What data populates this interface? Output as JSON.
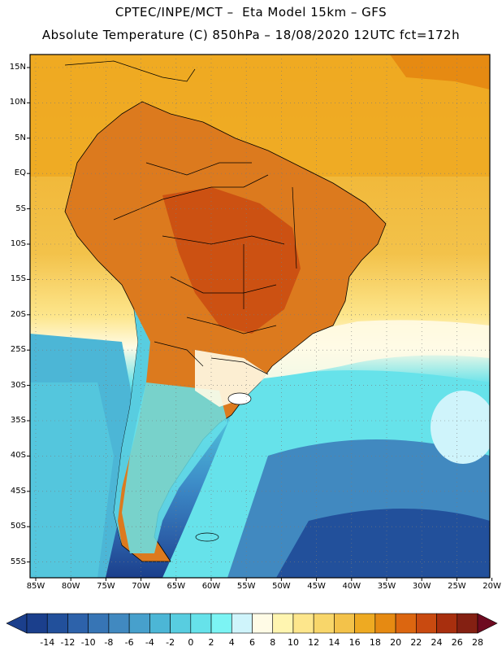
{
  "title_line1": "CPTEC/INPE/MCT –  Eta Model 15km – GFS",
  "title_line2": "Absolute Temperature (C) 850hPa – 18/08/2020 12UTC fct=172h",
  "lat_labels": [
    "15N",
    "10N",
    "5N",
    "EQ",
    "5S",
    "10S",
    "15S",
    "20S",
    "25S",
    "30S",
    "35S",
    "40S",
    "45S",
    "50S",
    "55S"
  ],
  "lon_labels": [
    "85W",
    "80W",
    "75W",
    "70W",
    "65W",
    "60W",
    "55W",
    "50W",
    "45W",
    "40W",
    "35W",
    "30W",
    "25W",
    "20W"
  ],
  "colorbar": {
    "labels": [
      "-14",
      "-12",
      "-10",
      "-8",
      "-6",
      "-4",
      "-2",
      "0",
      "2",
      "4",
      "6",
      "8",
      "10",
      "12",
      "14",
      "16",
      "18",
      "20",
      "22",
      "24",
      "26",
      "28"
    ],
    "colors": [
      "#1b3f8c",
      "#22509b",
      "#2d62aa",
      "#3775b5",
      "#4189c0",
      "#47a0cc",
      "#4cb6d6",
      "#58cde0",
      "#66e2ea",
      "#7cf4f4",
      "#cff4fb",
      "#fffbe6",
      "#fff5b0",
      "#fde68c",
      "#f8d66a",
      "#f3c24a",
      "#eeaa22",
      "#e68a12",
      "#dc6610",
      "#c94a10",
      "#a82f0e",
      "#842012"
    ]
  },
  "colors": {
    "ocean_warm": "#eeaa22",
    "ocean_cold": "#1e46a0",
    "land_hot": "#c85a1a",
    "land_warm": "#dc7a1e",
    "pale": "#fffbe6",
    "cyan": "#66e2ea",
    "blue_mid": "#3d8cc8",
    "frame": "#000000"
  }
}
